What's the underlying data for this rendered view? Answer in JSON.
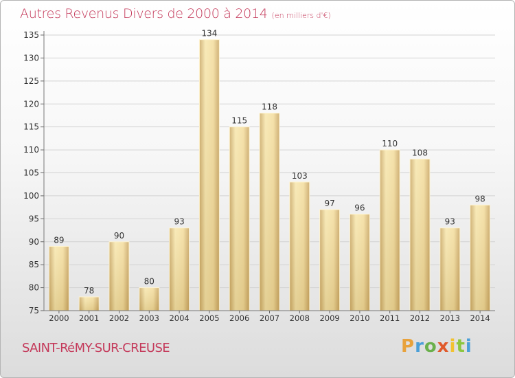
{
  "header": {
    "title": "Autres Revenus Divers de 2000 à 2014",
    "subtitle": "(en milliers d'€)"
  },
  "footer": {
    "city": "SAINT-RéMY-SUR-CREUSE",
    "brand": "Proxiti",
    "brand_letters": [
      "P",
      "r",
      "o",
      "x",
      "i",
      "t",
      "i"
    ],
    "brand_colors": [
      "#e8a23b",
      "#4a9fd8",
      "#6ab04c",
      "#e05a2b",
      "#f2c230",
      "#8cc63f",
      "#4a9fd8"
    ]
  },
  "colors": {
    "title": "#c4395a",
    "bar_light": "#f6e3a6",
    "bar_dark": "#d4b470",
    "grid": "#cfcfcf"
  },
  "chart_data": {
    "type": "bar",
    "title": "Autres Revenus Divers de 2000 à 2014",
    "subtitle": "(en milliers d'€)",
    "categories": [
      "2000",
      "2001",
      "2002",
      "2003",
      "2004",
      "2005",
      "2006",
      "2007",
      "2008",
      "2009",
      "2010",
      "2011",
      "2012",
      "2013",
      "2014"
    ],
    "values": [
      89,
      78,
      90,
      80,
      93,
      134,
      115,
      118,
      103,
      97,
      96,
      110,
      108,
      93,
      98
    ],
    "ylim": [
      75,
      135
    ],
    "yticks": [
      75,
      80,
      85,
      90,
      95,
      100,
      105,
      110,
      115,
      120,
      125,
      130,
      135
    ],
    "grid": true,
    "xlabel": "",
    "ylabel": ""
  }
}
